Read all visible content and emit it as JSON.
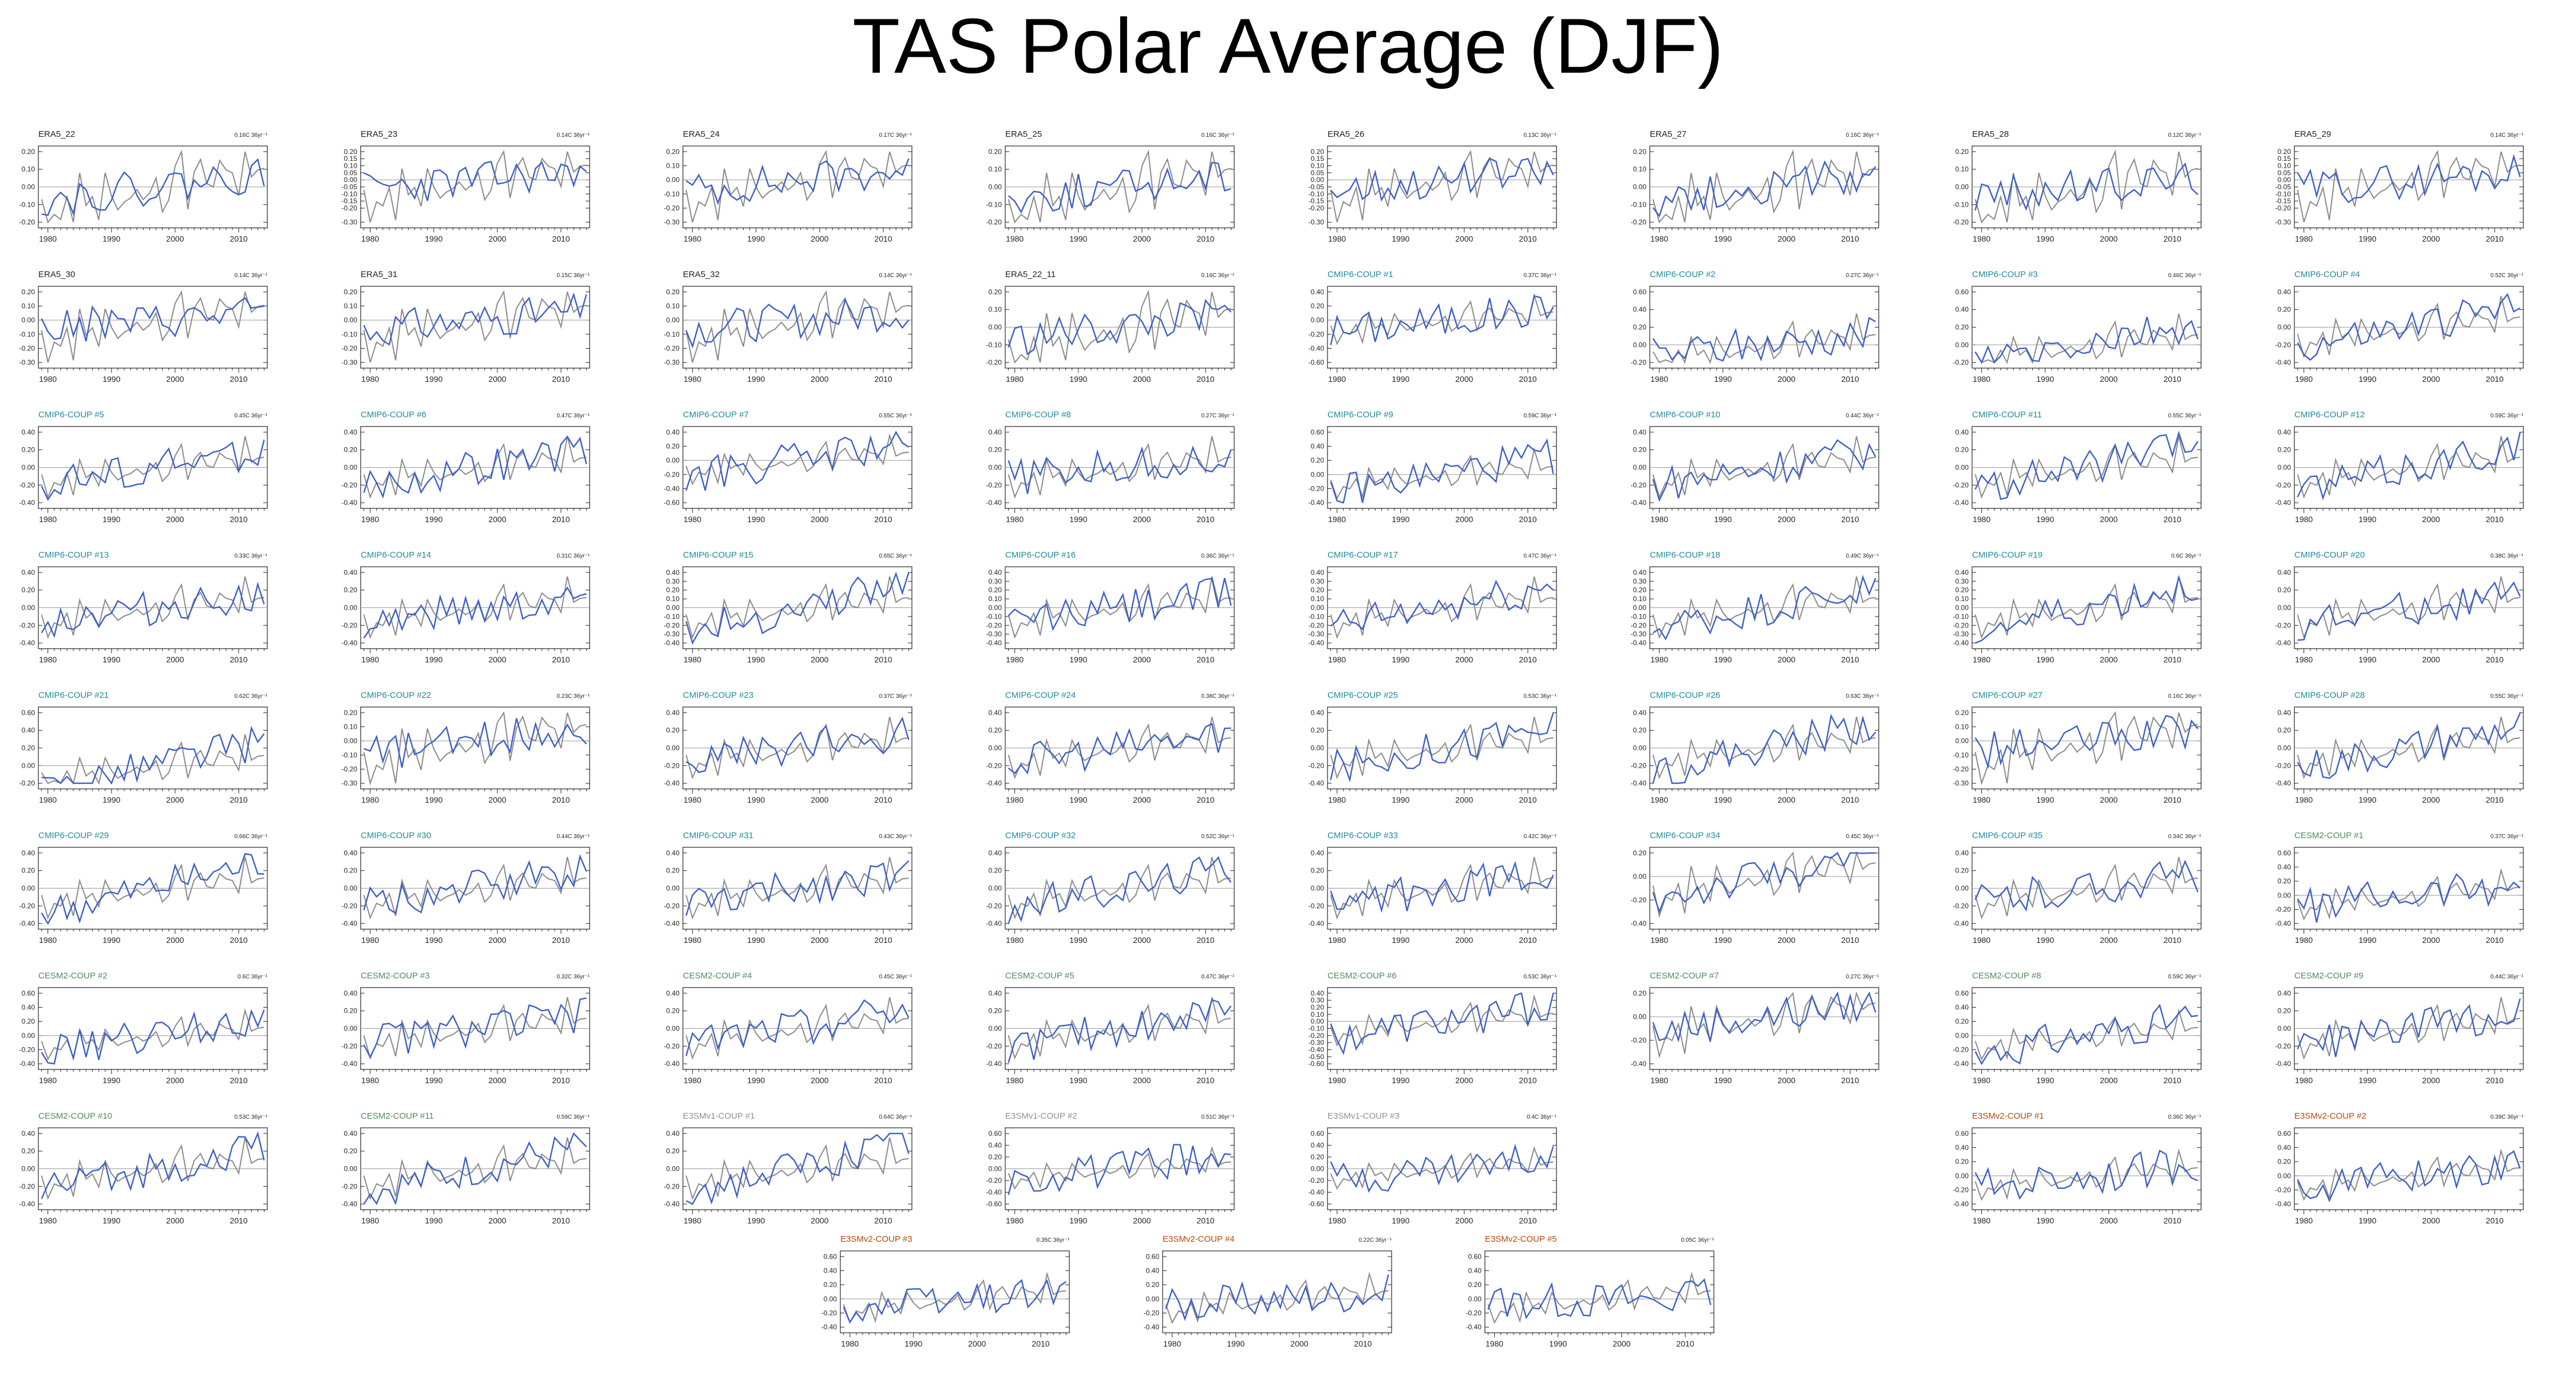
{
  "title": "TAS Polar Average (DJF)",
  "colors": {
    "model_line": "#3b5fc8",
    "reference_line": "#8a8a8a",
    "zero_line": "#999999",
    "label_era5": "#222222",
    "label_cmip6": "#1f8a9e",
    "label_cesm2": "#4f8a5a",
    "label_e3smv1": "#909090",
    "label_e3smv2": "#b5470d"
  },
  "chart_data": {
    "type": "line",
    "x_range": [
      1979,
      2014
    ],
    "x_ticks": [
      "1980",
      "1990",
      "2000",
      "2010"
    ],
    "grid": false,
    "panels": [
      {
        "label": "ERA5_22",
        "trend": "0.16C 36yr⁻¹",
        "group": "era5",
        "yticks": [
          "0.20",
          "0.10",
          "0.00",
          "-0.10",
          "-0.20"
        ],
        "seed": 22
      },
      {
        "label": "ERA5_23",
        "trend": "0.14C 36yr⁻¹",
        "group": "era5",
        "yticks": [
          "0.20",
          "0.15",
          "0.10",
          "0.05",
          "0.00",
          "-0.05",
          "-0.10",
          "-0.15",
          "-0.20",
          "-0.30"
        ],
        "seed": 23
      },
      {
        "label": "ERA5_24",
        "trend": "0.17C 36yr⁻¹",
        "group": "era5",
        "yticks": [
          "0.20",
          "0.10",
          "0.00",
          "-0.10",
          "-0.20",
          "-0.30"
        ],
        "seed": 24
      },
      {
        "label": "ERA5_25",
        "trend": "0.16C 36yr⁻¹",
        "group": "era5",
        "yticks": [
          "0.20",
          "0.10",
          "0.00",
          "-0.10",
          "-0.20"
        ],
        "seed": 25
      },
      {
        "label": "ERA5_26",
        "trend": "0.13C 36yr⁻¹",
        "group": "era5",
        "yticks": [
          "0.20",
          "0.15",
          "0.10",
          "0.05",
          "0.00",
          "-0.05",
          "-0.10",
          "-0.15",
          "-0.20",
          "-0.30"
        ],
        "seed": 26
      },
      {
        "label": "ERA5_27",
        "trend": "0.16C 36yr⁻¹",
        "group": "era5",
        "yticks": [
          "0.20",
          "0.10",
          "0.00",
          "-0.10",
          "-0.20"
        ],
        "seed": 27
      },
      {
        "label": "ERA5_28",
        "trend": "0.12C 36yr⁻¹",
        "group": "era5",
        "yticks": [
          "0.20",
          "0.10",
          "0.00",
          "-0.10",
          "-0.20"
        ],
        "seed": 28
      },
      {
        "label": "ERA5_29",
        "trend": "0.14C 36yr⁻¹",
        "group": "era5",
        "yticks": [
          "0.20",
          "0.15",
          "0.10",
          "0.05",
          "0.00",
          "-0.05",
          "-0.10",
          "-0.15",
          "-0.20",
          "-0.30"
        ],
        "seed": 29
      },
      {
        "label": "ERA5_30",
        "trend": "0.14C 36yr⁻¹",
        "group": "era5",
        "yticks": [
          "0.20",
          "0.10",
          "0.00",
          "-0.10",
          "-0.20",
          "-0.30"
        ],
        "seed": 30
      },
      {
        "label": "ERA5_31",
        "trend": "0.15C 36yr⁻¹",
        "group": "era5",
        "yticks": [
          "0.20",
          "0.10",
          "0.00",
          "-0.10",
          "-0.20",
          "-0.30"
        ],
        "seed": 31
      },
      {
        "label": "ERA5_32",
        "trend": "0.14C 36yr⁻¹",
        "group": "era5",
        "yticks": [
          "0.20",
          "0.10",
          "0.00",
          "-0.10",
          "-0.20",
          "-0.30"
        ],
        "seed": 32
      },
      {
        "label": "ERA5_22_11",
        "trend": "0.16C 36yr⁻¹",
        "group": "era5",
        "yticks": [
          "0.20",
          "0.10",
          "0.00",
          "-0.10",
          "-0.20"
        ],
        "seed": 33
      },
      {
        "label": "CMIP6-COUP  #1",
        "trend": "0.37C 36yr⁻¹",
        "group": "cmip6",
        "yticks": [
          "0.40",
          "0.20",
          "0.00",
          "-0.20",
          "-0.40",
          "-0.60"
        ],
        "seed": 101
      },
      {
        "label": "CMIP6-COUP  #2",
        "trend": "0.27C 36yr⁻¹",
        "group": "cmip6",
        "yticks": [
          "0.60",
          "0.40",
          "0.20",
          "0.00",
          "-0.20"
        ],
        "seed": 102
      },
      {
        "label": "CMIP6-COUP  #3",
        "trend": "0.46C 36yr⁻¹",
        "group": "cmip6",
        "yticks": [
          "0.60",
          "0.40",
          "0.20",
          "0.00",
          "-0.20"
        ],
        "seed": 103
      },
      {
        "label": "CMIP6-COUP  #4",
        "trend": "0.52C 36yr⁻¹",
        "group": "cmip6",
        "yticks": [
          "0.40",
          "0.20",
          "0.00",
          "-0.20",
          "-0.40"
        ],
        "seed": 104
      },
      {
        "label": "CMIP6-COUP  #5",
        "trend": "0.45C 36yr⁻¹",
        "group": "cmip6",
        "yticks": [
          "0.40",
          "0.20",
          "0.00",
          "-0.20",
          "-0.40"
        ],
        "seed": 105
      },
      {
        "label": "CMIP6-COUP  #6",
        "trend": "0.47C 36yr⁻¹",
        "group": "cmip6",
        "yticks": [
          "0.40",
          "0.20",
          "0.00",
          "-0.20",
          "-0.40"
        ],
        "seed": 106
      },
      {
        "label": "CMIP6-COUP  #7",
        "trend": "0.55C 36yr⁻¹",
        "group": "cmip6",
        "yticks": [
          "0.40",
          "0.20",
          "0.00",
          "-0.20",
          "-0.40",
          "-0.60"
        ],
        "seed": 107
      },
      {
        "label": "CMIP6-COUP  #8",
        "trend": "0.27C 36yr⁻¹",
        "group": "cmip6",
        "yticks": [
          "0.40",
          "0.20",
          "0.00",
          "-0.20",
          "-0.40"
        ],
        "seed": 108
      },
      {
        "label": "CMIP6-COUP  #9",
        "trend": "0.59C 36yr⁻¹",
        "group": "cmip6",
        "yticks": [
          "0.60",
          "0.40",
          "0.20",
          "0.00",
          "-0.20",
          "-0.40"
        ],
        "seed": 109
      },
      {
        "label": "CMIP6-COUP  #10",
        "trend": "0.44C 36yr⁻¹",
        "group": "cmip6",
        "yticks": [
          "0.40",
          "0.20",
          "0.00",
          "-0.20",
          "-0.40"
        ],
        "seed": 110
      },
      {
        "label": "CMIP6-COUP  #11",
        "trend": "0.55C 36yr⁻¹",
        "group": "cmip6",
        "yticks": [
          "0.40",
          "0.20",
          "0.00",
          "-0.20",
          "-0.40"
        ],
        "seed": 111
      },
      {
        "label": "CMIP6-COUP  #12",
        "trend": "0.59C 36yr⁻¹",
        "group": "cmip6",
        "yticks": [
          "0.40",
          "0.20",
          "0.00",
          "-0.20",
          "-0.40"
        ],
        "seed": 112
      },
      {
        "label": "CMIP6-COUP  #13",
        "trend": "0.33C 36yr⁻¹",
        "group": "cmip6",
        "yticks": [
          "0.40",
          "0.20",
          "0.00",
          "-0.20",
          "-0.40"
        ],
        "seed": 113
      },
      {
        "label": "CMIP6-COUP  #14",
        "trend": "0.31C 36yr⁻¹",
        "group": "cmip6",
        "yticks": [
          "0.40",
          "0.20",
          "0.00",
          "-0.20",
          "-0.40"
        ],
        "seed": 114
      },
      {
        "label": "CMIP6-COUP  #15",
        "trend": "0.65C 36yr⁻¹",
        "group": "cmip6",
        "yticks": [
          "0.40",
          "0.30",
          "0.20",
          "0.10",
          "0.00",
          "-0.10",
          "-0.20",
          "-0.30",
          "-0.40"
        ],
        "seed": 115
      },
      {
        "label": "CMIP6-COUP  #16",
        "trend": "0.36C 36yr⁻¹",
        "group": "cmip6",
        "yticks": [
          "0.40",
          "0.30",
          "0.20",
          "0.10",
          "0.00",
          "-0.10",
          "-0.20",
          "-0.30",
          "-0.40"
        ],
        "seed": 116
      },
      {
        "label": "CMIP6-COUP  #17",
        "trend": "0.47C 36yr⁻¹",
        "group": "cmip6",
        "yticks": [
          "0.40",
          "0.30",
          "0.20",
          "0.10",
          "0.00",
          "-0.10",
          "-0.20",
          "-0.30",
          "-0.40"
        ],
        "seed": 117
      },
      {
        "label": "CMIP6-COUP  #18",
        "trend": "0.49C 36yr⁻¹",
        "group": "cmip6",
        "yticks": [
          "0.40",
          "0.30",
          "0.20",
          "0.10",
          "0.00",
          "-0.10",
          "-0.20",
          "-0.30",
          "-0.40"
        ],
        "seed": 118
      },
      {
        "label": "CMIP6-COUP  #19",
        "trend": "0.6C 36yr⁻¹",
        "group": "cmip6",
        "yticks": [
          "0.40",
          "0.30",
          "0.20",
          "0.10",
          "0.00",
          "-0.10",
          "-0.20",
          "-0.30",
          "-0.40"
        ],
        "seed": 119
      },
      {
        "label": "CMIP6-COUP  #20",
        "trend": "0.38C 36yr⁻¹",
        "group": "cmip6",
        "yticks": [
          "0.40",
          "0.20",
          "0.00",
          "-0.20",
          "-0.40"
        ],
        "seed": 120
      },
      {
        "label": "CMIP6-COUP  #21",
        "trend": "0.62C 36yr⁻¹",
        "group": "cmip6",
        "yticks": [
          "0.60",
          "0.40",
          "0.20",
          "0.00",
          "-0.20"
        ],
        "seed": 121
      },
      {
        "label": "CMIP6-COUP  #22",
        "trend": "0.23C 36yr⁻¹",
        "group": "cmip6",
        "yticks": [
          "0.20",
          "0.10",
          "0.00",
          "-0.10",
          "-0.20",
          "-0.30"
        ],
        "seed": 122
      },
      {
        "label": "CMIP6-COUP  #23",
        "trend": "0.37C 36yr⁻¹",
        "group": "cmip6",
        "yticks": [
          "0.40",
          "0.20",
          "0.00",
          "-0.20",
          "-0.40"
        ],
        "seed": 123
      },
      {
        "label": "CMIP6-COUP  #24",
        "trend": "0.38C 36yr⁻¹",
        "group": "cmip6",
        "yticks": [
          "0.40",
          "0.20",
          "0.00",
          "-0.20",
          "-0.40"
        ],
        "seed": 124
      },
      {
        "label": "CMIP6-COUP  #25",
        "trend": "0.53C 36yr⁻¹",
        "group": "cmip6",
        "yticks": [
          "0.40",
          "0.20",
          "0.00",
          "-0.20",
          "-0.40"
        ],
        "seed": 125
      },
      {
        "label": "CMIP6-COUP  #26",
        "trend": "0.63C 36yr⁻¹",
        "group": "cmip6",
        "yticks": [
          "0.40",
          "0.20",
          "0.00",
          "-0.20",
          "-0.40"
        ],
        "seed": 126
      },
      {
        "label": "CMIP6-COUP  #27",
        "trend": "0.16C 36yr⁻¹",
        "group": "cmip6",
        "yticks": [
          "0.20",
          "0.10",
          "0.00",
          "-0.10",
          "-0.20",
          "-0.30"
        ],
        "seed": 127
      },
      {
        "label": "CMIP6-COUP  #28",
        "trend": "0.55C 36yr⁻¹",
        "group": "cmip6",
        "yticks": [
          "0.40",
          "0.20",
          "0.00",
          "-0.20",
          "-0.40"
        ],
        "seed": 128
      },
      {
        "label": "CMIP6-COUP  #29",
        "trend": "0.66C 36yr⁻¹",
        "group": "cmip6",
        "yticks": [
          "0.40",
          "0.20",
          "0.00",
          "-0.20",
          "-0.40"
        ],
        "seed": 129
      },
      {
        "label": "CMIP6-COUP  #30",
        "trend": "0.44C 36yr⁻¹",
        "group": "cmip6",
        "yticks": [
          "0.40",
          "0.20",
          "0.00",
          "-0.20",
          "-0.40"
        ],
        "seed": 130
      },
      {
        "label": "CMIP6-COUP  #31",
        "trend": "0.43C 36yr⁻¹",
        "group": "cmip6",
        "yticks": [
          "0.40",
          "0.20",
          "0.00",
          "-0.20",
          "-0.40"
        ],
        "seed": 131
      },
      {
        "label": "CMIP6-COUP  #32",
        "trend": "0.52C 36yr⁻¹",
        "group": "cmip6",
        "yticks": [
          "0.40",
          "0.20",
          "0.00",
          "-0.20",
          "-0.40"
        ],
        "seed": 132
      },
      {
        "label": "CMIP6-COUP  #33",
        "trend": "0.42C 36yr⁻¹",
        "group": "cmip6",
        "yticks": [
          "0.40",
          "0.20",
          "0.00",
          "-0.20",
          "-0.40"
        ],
        "seed": 133
      },
      {
        "label": "CMIP6-COUP  #34",
        "trend": "0.45C 36yr⁻¹",
        "group": "cmip6",
        "yticks": [
          "0.20",
          "0.00",
          "-0.20",
          "-0.40"
        ],
        "seed": 134
      },
      {
        "label": "CMIP6-COUP  #35",
        "trend": "0.34C 36yr⁻¹",
        "group": "cmip6",
        "yticks": [
          "0.40",
          "0.20",
          "0.00",
          "-0.20",
          "-0.40"
        ],
        "seed": 135
      },
      {
        "label": "CESM2-COUP  #1",
        "trend": "0.37C 36yr⁻¹",
        "group": "cesm2",
        "yticks": [
          "0.60",
          "0.40",
          "0.20",
          "0.00",
          "-0.20",
          "-0.40"
        ],
        "seed": 201
      },
      {
        "label": "CESM2-COUP  #2",
        "trend": "0.6C 36yr⁻¹",
        "group": "cesm2",
        "yticks": [
          "0.60",
          "0.40",
          "0.20",
          "0.00",
          "-0.20",
          "-0.40"
        ],
        "seed": 202
      },
      {
        "label": "CESM2-COUP  #3",
        "trend": "0.32C 36yr⁻¹",
        "group": "cesm2",
        "yticks": [
          "0.40",
          "0.20",
          "0.00",
          "-0.20",
          "-0.40"
        ],
        "seed": 203
      },
      {
        "label": "CESM2-COUP  #4",
        "trend": "0.45C 36yr⁻¹",
        "group": "cesm2",
        "yticks": [
          "0.40",
          "0.20",
          "0.00",
          "-0.20",
          "-0.40"
        ],
        "seed": 204
      },
      {
        "label": "CESM2-COUP  #5",
        "trend": "0.47C 36yr⁻¹",
        "group": "cesm2",
        "yticks": [
          "0.40",
          "0.20",
          "0.00",
          "-0.20",
          "-0.40"
        ],
        "seed": 205
      },
      {
        "label": "CESM2-COUP  #6",
        "trend": "0.53C 36yr⁻¹",
        "group": "cesm2",
        "yticks": [
          "0.40",
          "0.30",
          "0.20",
          "0.10",
          "0.00",
          "-0.10",
          "-0.20",
          "-0.30",
          "-0.40",
          "-0.50",
          "-0.60"
        ],
        "seed": 206
      },
      {
        "label": "CESM2-COUP  #7",
        "trend": "0.27C 36yr⁻¹",
        "group": "cesm2",
        "yticks": [
          "0.20",
          "0.00",
          "-0.20",
          "-0.40"
        ],
        "seed": 207
      },
      {
        "label": "CESM2-COUP  #8",
        "trend": "0.59C 36yr⁻¹",
        "group": "cesm2",
        "yticks": [
          "0.60",
          "0.40",
          "0.20",
          "0.00",
          "-0.20",
          "-0.40"
        ],
        "seed": 208
      },
      {
        "label": "CESM2-COUP  #9",
        "trend": "0.44C 36yr⁻¹",
        "group": "cesm2",
        "yticks": [
          "0.40",
          "0.20",
          "0.00",
          "-0.20",
          "-0.40"
        ],
        "seed": 209
      },
      {
        "label": "CESM2-COUP  #10",
        "trend": "0.53C 36yr⁻¹",
        "group": "cesm2",
        "yticks": [
          "0.40",
          "0.20",
          "0.00",
          "-0.20",
          "-0.40"
        ],
        "seed": 210
      },
      {
        "label": "CESM2-COUP  #11",
        "trend": "0.59C 36yr⁻¹",
        "group": "cesm2",
        "yticks": [
          "0.40",
          "0.20",
          "0.00",
          "-0.20",
          "-0.40"
        ],
        "seed": 211
      },
      {
        "label": "E3SMv1-COUP #1",
        "trend": "0.64C 36yr⁻¹",
        "group": "e3smv1",
        "yticks": [
          "0.40",
          "0.20",
          "0.00",
          "-0.20",
          "-0.40"
        ],
        "seed": 301
      },
      {
        "label": "E3SMv1-COUP #2",
        "trend": "0.51C 36yr⁻¹",
        "group": "e3smv1",
        "yticks": [
          "0.60",
          "0.40",
          "0.20",
          "0.00",
          "-0.20",
          "-0.40",
          "-0.60"
        ],
        "seed": 302
      },
      {
        "label": "E3SMv1-COUP #3",
        "trend": "0.4C 36yr⁻¹",
        "group": "e3smv1",
        "yticks": [
          "0.60",
          "0.40",
          "0.20",
          "0.00",
          "-0.20",
          "-0.40",
          "-0.60"
        ],
        "seed": 303
      },
      {
        "label": "E3SMv2-COUP #1",
        "trend": "0.36C 36yr⁻¹",
        "group": "e3smv2",
        "yticks": [
          "0.60",
          "0.40",
          "0.20",
          "0.00",
          "-0.20",
          "-0.40"
        ],
        "seed": 401
      },
      {
        "label": "E3SMv2-COUP #2",
        "trend": "0.39C 36yr⁻¹",
        "group": "e3smv2",
        "yticks": [
          "0.60",
          "0.40",
          "0.20",
          "0.00",
          "-0.20",
          "-0.40"
        ],
        "seed": 402
      },
      {
        "label": "E3SMv2-COUP #3",
        "trend": "0.35C 36yr⁻¹",
        "group": "e3smv2",
        "yticks": [
          "0.60",
          "0.40",
          "0.20",
          "0.00",
          "-0.20",
          "-0.40"
        ],
        "seed": 403
      },
      {
        "label": "E3SMv2-COUP #4",
        "trend": "0.22C 36yr⁻¹",
        "group": "e3smv2",
        "yticks": [
          "0.60",
          "0.40",
          "0.20",
          "0.00",
          "-0.20",
          "-0.40"
        ],
        "seed": 404
      },
      {
        "label": "E3SMv2-COUP #5",
        "trend": "0.05C 36yr⁻¹",
        "group": "e3smv2",
        "yticks": [
          "0.60",
          "0.40",
          "0.20",
          "0.00",
          "-0.20",
          "-0.40"
        ],
        "seed": 405
      }
    ]
  }
}
